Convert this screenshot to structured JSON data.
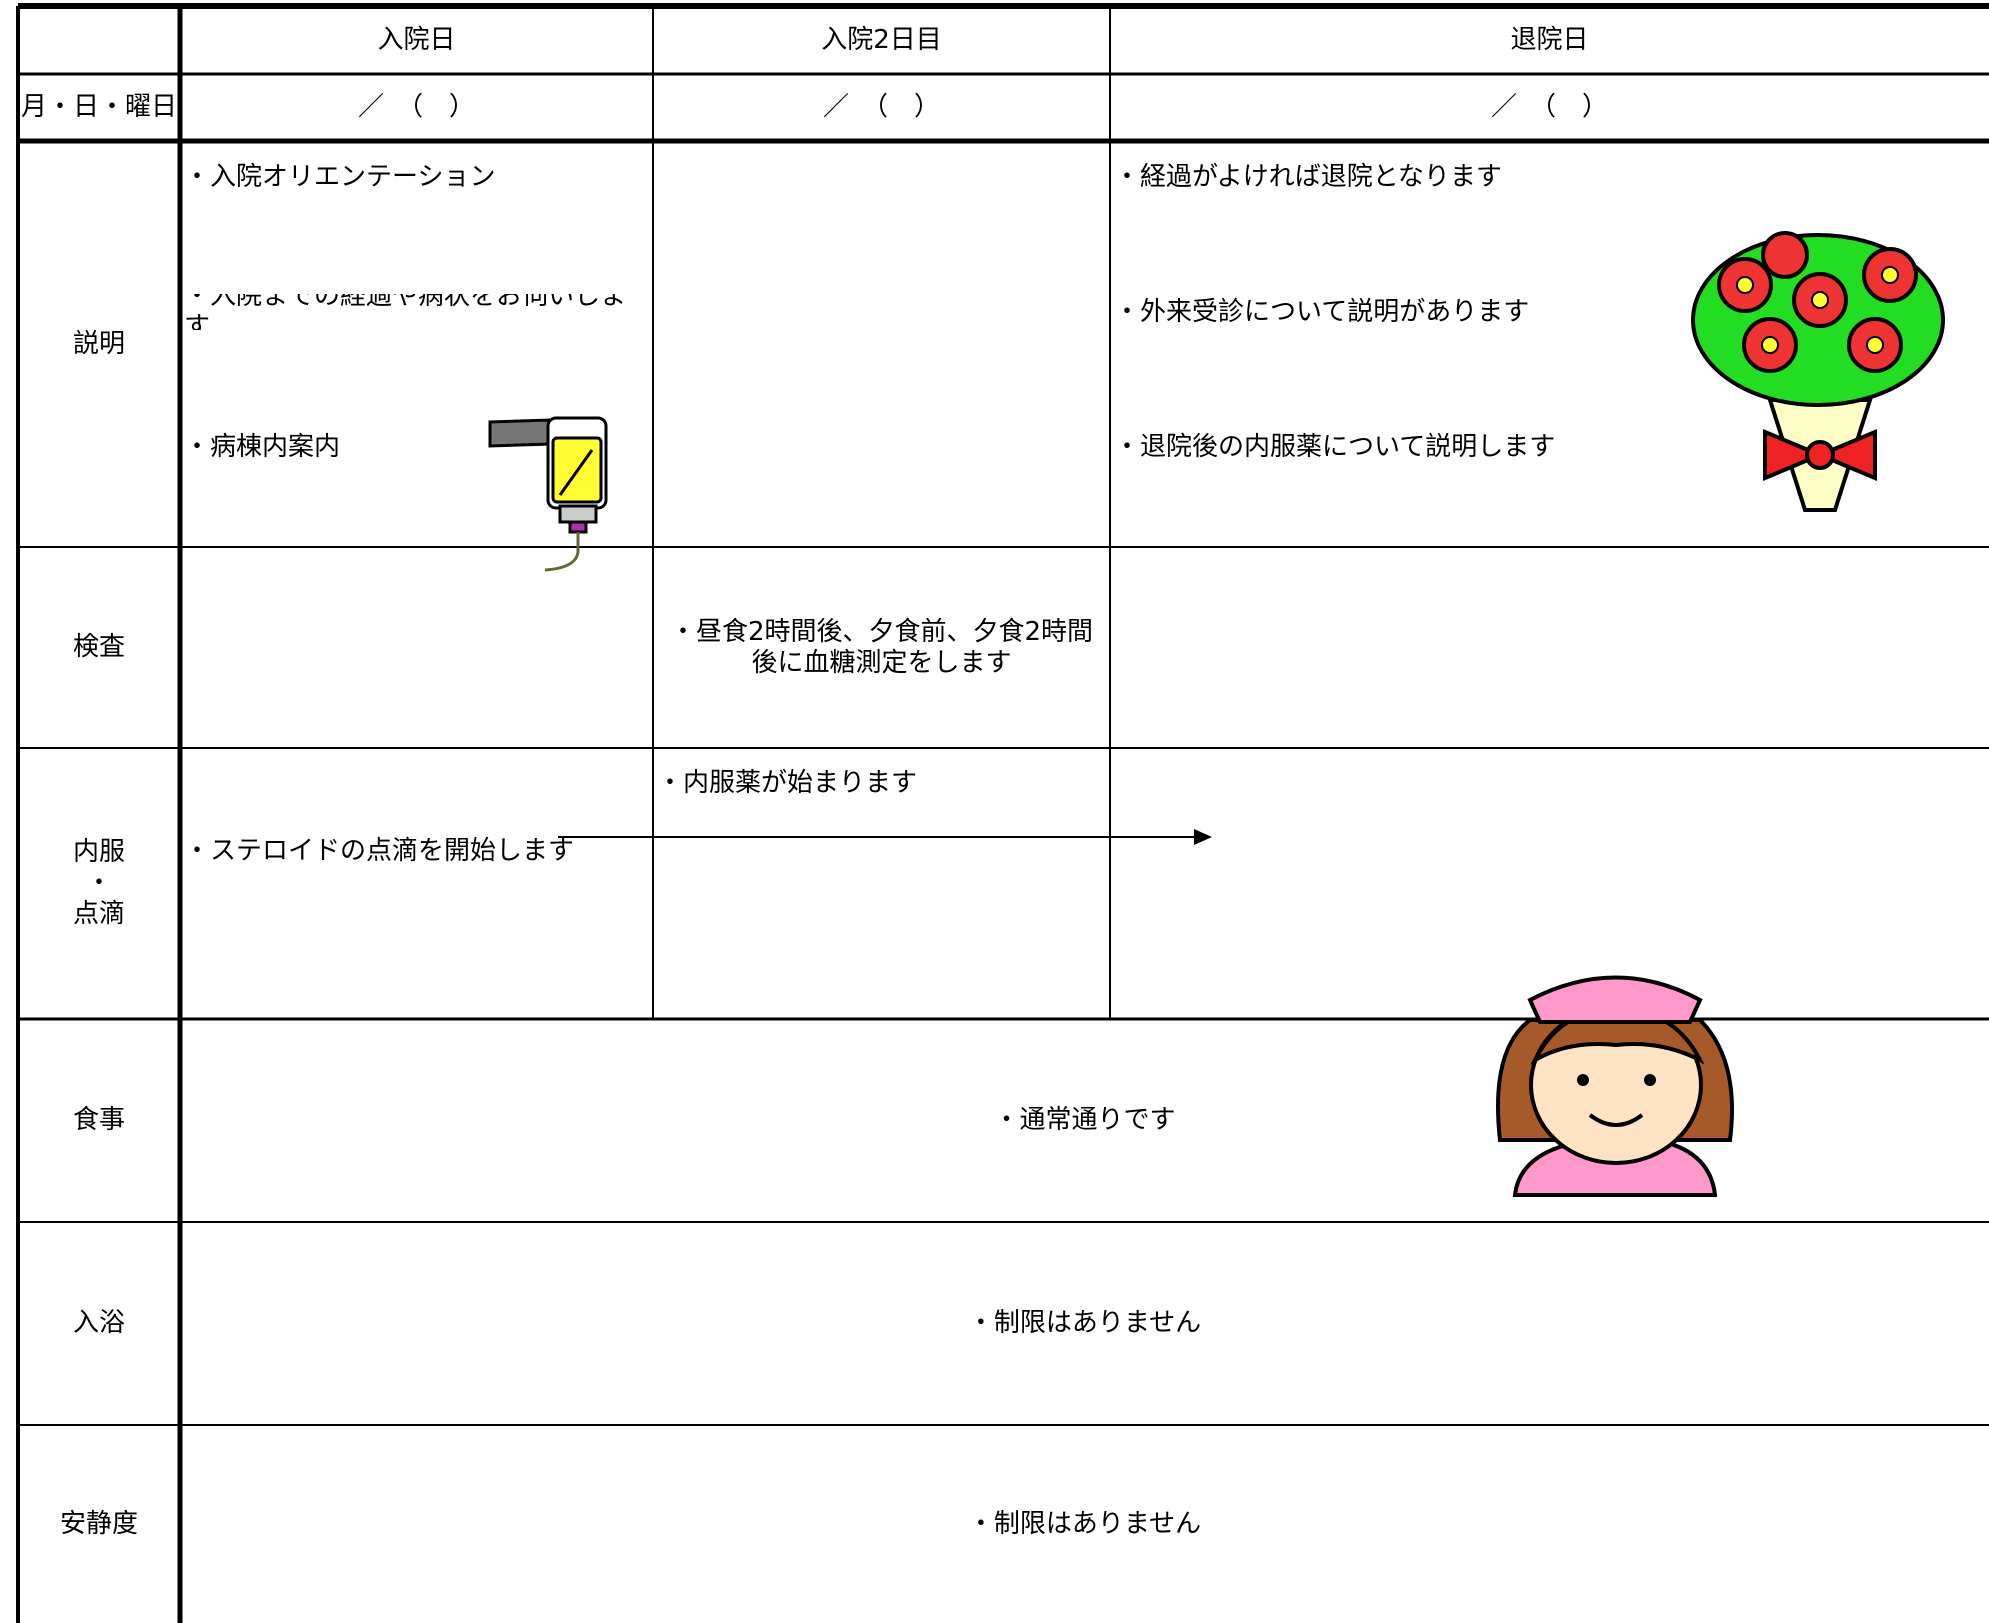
{
  "table": {
    "columns": [
      "入院日",
      "入院2日目",
      "退院日"
    ],
    "date_label": "月・日・曜日",
    "date_cells": [
      "／　（　）",
      "／　（　）",
      "／　（　）"
    ],
    "rows": [
      {
        "label": "説明",
        "cells": [
          [
            "・入院オリエンテーション",
            "・入院までの経過や病状をお伺いします",
            "・病棟内案内"
          ],
          [],
          [
            "・経過がよければ退院となります",
            "・外来受診について説明があります",
            "・退院後の内服薬について説明します"
          ]
        ]
      },
      {
        "label": "検査",
        "cells": [
          [],
          [
            "・昼食2時間後、夕食前、夕食2時間後に血糖測定をします"
          ],
          []
        ]
      },
      {
        "label": "内服\n・\n点滴",
        "cells": [
          [
            "・ステロイドの点滴を開始します"
          ],
          [
            "・内服薬が始まります"
          ],
          []
        ]
      },
      {
        "label": "食事",
        "merged": "・通常通りです"
      },
      {
        "label": "入浴",
        "merged": "・制限はありません"
      },
      {
        "label": "安静度",
        "merged": "・制限はありません"
      }
    ]
  }
}
